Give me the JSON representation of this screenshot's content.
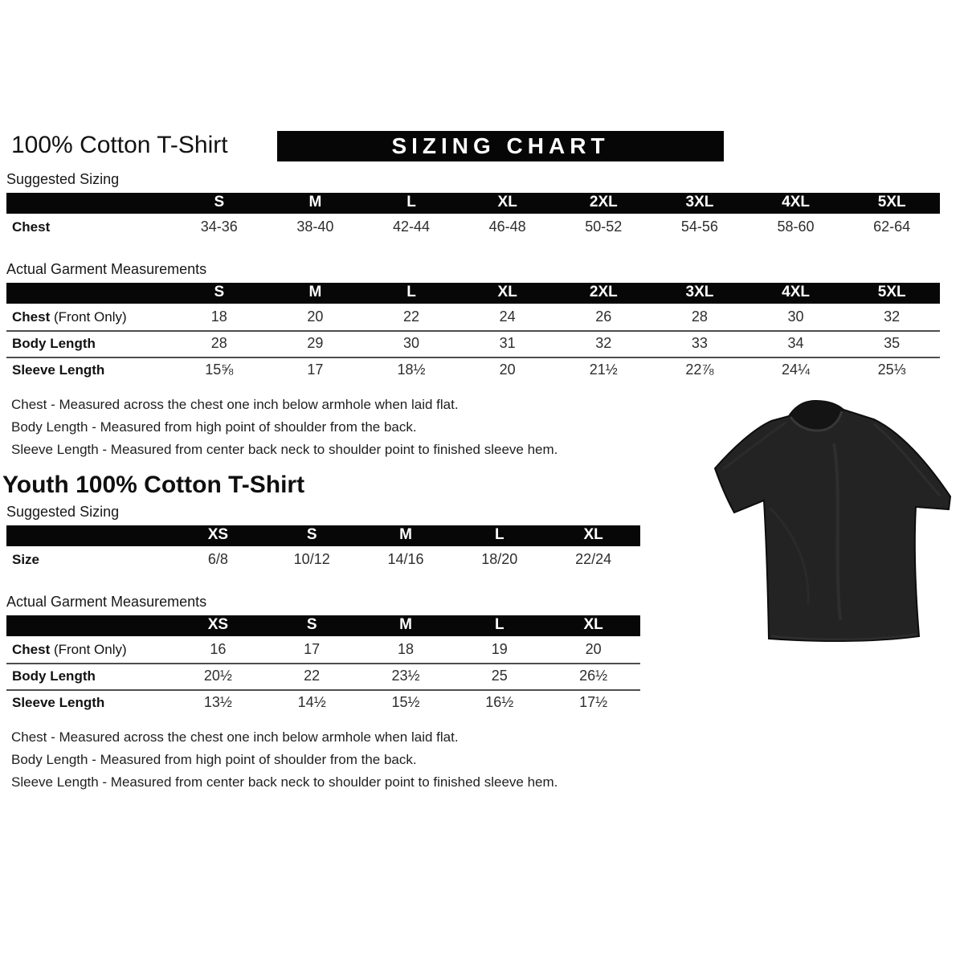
{
  "adult": {
    "title": "100% Cotton T-Shirt",
    "banner": "SIZING CHART",
    "suggested": {
      "heading": "Suggested Sizing",
      "columns": [
        "S",
        "M",
        "L",
        "XL",
        "2XL",
        "3XL",
        "4XL",
        "5XL"
      ],
      "rows": [
        {
          "label": "Chest",
          "suffix": "",
          "values": [
            "34-36",
            "38-40",
            "42-44",
            "46-48",
            "50-52",
            "54-56",
            "58-60",
            "62-64"
          ]
        }
      ]
    },
    "actual": {
      "heading": "Actual Garment Measurements",
      "columns": [
        "S",
        "M",
        "L",
        "XL",
        "2XL",
        "3XL",
        "4XL",
        "5XL"
      ],
      "rows": [
        {
          "label": "Chest",
          "suffix": "(Front Only)",
          "values": [
            "18",
            "20",
            "22",
            "24",
            "26",
            "28",
            "30",
            "32"
          ]
        },
        {
          "label": "Body Length",
          "suffix": "",
          "values": [
            "28",
            "29",
            "30",
            "31",
            "32",
            "33",
            "34",
            "35"
          ]
        },
        {
          "label": "Sleeve Length",
          "suffix": "",
          "values": [
            "15⅝",
            "17",
            "18½",
            "20",
            "21½",
            "22⅞",
            "24¼",
            "25⅓"
          ]
        }
      ]
    },
    "notes": [
      "Chest - Measured across the chest one inch below armhole when laid flat.",
      "Body Length - Measured from high point of shoulder from the back.",
      "Sleeve Length - Measured from center back neck to shoulder point to finished sleeve hem."
    ]
  },
  "youth": {
    "title": "Youth 100% Cotton T-Shirt",
    "suggested": {
      "heading": "Suggested Sizing",
      "columns": [
        "XS",
        "S",
        "M",
        "L",
        "XL"
      ],
      "rows": [
        {
          "label": "Size",
          "suffix": "",
          "values": [
            "6/8",
            "10/12",
            "14/16",
            "18/20",
            "22/24"
          ]
        }
      ]
    },
    "actual": {
      "heading": "Actual Garment Measurements",
      "columns": [
        "XS",
        "S",
        "M",
        "L",
        "XL"
      ],
      "rows": [
        {
          "label": "Chest",
          "suffix": "(Front Only)",
          "values": [
            "16",
            "17",
            "18",
            "19",
            "20"
          ]
        },
        {
          "label": "Body Length",
          "suffix": "",
          "values": [
            "20½",
            "22",
            "23½",
            "25",
            "26½"
          ]
        },
        {
          "label": "Sleeve Length",
          "suffix": "",
          "values": [
            "13½",
            "14½",
            "15½",
            "16½",
            "17½"
          ]
        }
      ]
    },
    "notes": [
      "Chest - Measured across the chest one inch below armhole when laid flat.",
      "Body Length - Measured from high point of shoulder from the back.",
      "Sleeve Length - Measured from center back neck to shoulder point to finished sleeve hem."
    ]
  },
  "tshirt_image": {
    "description": "black short-sleeve crew-neck t-shirt photo",
    "color": "#232323"
  }
}
